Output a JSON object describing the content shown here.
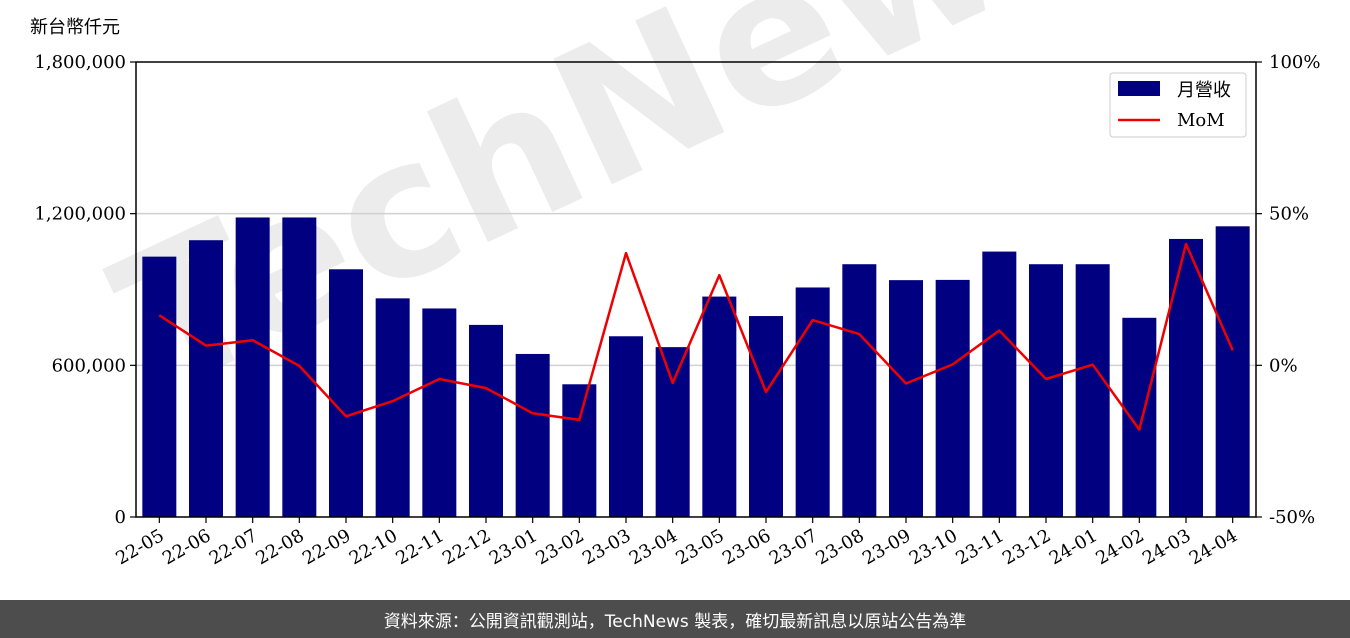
{
  "watermark_text": "TechNews",
  "footer": {
    "source_text": "資料來源：公開資訊觀測站，TechNews 製表，確切最新訊息以原站公告為準"
  },
  "colors": {
    "bar": "#000080",
    "line": "#ee0000",
    "grid": "#d0d0d0",
    "watermark": "#dddddd",
    "watermark_accent": "#fadada"
  },
  "chart_data": {
    "type": "bar",
    "title": "",
    "ylabel": "新台幣仟元",
    "y2label": "",
    "categories": [
      "22-05",
      "22-06",
      "22-07",
      "22-08",
      "22-09",
      "22-10",
      "22-11",
      "22-12",
      "23-01",
      "23-02",
      "23-03",
      "23-04",
      "23-05",
      "23-06",
      "23-07",
      "23-08",
      "23-09",
      "23-10",
      "23-11",
      "23-12",
      "24-01",
      "24-02",
      "24-03",
      "24-04"
    ],
    "ylim": [
      0,
      1800000
    ],
    "y2lim": [
      -50,
      100
    ],
    "yticks": [
      0,
      600000,
      1200000,
      1800000
    ],
    "ytick_labels": [
      "0",
      "600,000",
      "1,200,000",
      "1,800,000"
    ],
    "y2ticks": [
      -50,
      0,
      50,
      100
    ],
    "y2tick_labels": [
      "-50%",
      "0%",
      "50%",
      "100%"
    ],
    "grid": "horizontal",
    "legend_position": "top-right",
    "series": [
      {
        "name": "月營收",
        "type": "bar",
        "axis": "left",
        "values": [
          1030000,
          1095000,
          1185000,
          1185000,
          980000,
          865000,
          825000,
          760000,
          645000,
          525000,
          715000,
          672000,
          872000,
          795000,
          908000,
          1000000,
          937000,
          938000,
          1050000,
          1000000,
          1000000,
          788000,
          1100000,
          1150000
        ]
      },
      {
        "name": "MoM",
        "type": "line",
        "axis": "right",
        "values": [
          16.5,
          6.5,
          8.3,
          -0.2,
          -16.8,
          -11.8,
          -4.5,
          -7.5,
          -15.8,
          -18.0,
          37.0,
          -5.8,
          29.7,
          -8.8,
          14.9,
          10.3,
          -6.0,
          0.3,
          11.5,
          -4.5,
          0.2,
          -21.2,
          40.0,
          5.0
        ]
      }
    ]
  }
}
